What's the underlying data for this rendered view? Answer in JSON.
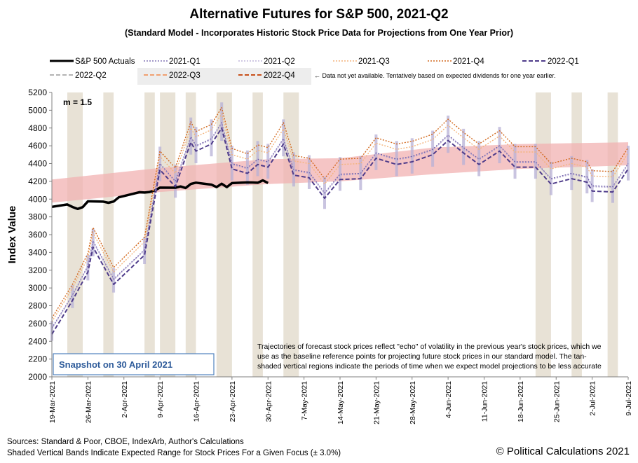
{
  "chart_data": {
    "type": "line",
    "title": "Alternative Futures for S&P 500, 2021-Q2",
    "subtitle": "(Standard Model - Incorporates Historic Stock Price Data for Projections from One Year Prior)",
    "ylabel": "Index Value",
    "ylim": [
      2000,
      5200
    ],
    "yticks": [
      2000,
      2200,
      2400,
      2600,
      2800,
      3000,
      3200,
      3400,
      3600,
      3800,
      4000,
      4200,
      4400,
      4600,
      4800,
      5000,
      5200
    ],
    "xlim": [
      "2021-03-19",
      "2021-07-09"
    ],
    "xticks": [
      "19-Mar-2021",
      "26-Mar-2021",
      "2-Apr-2021",
      "9-Apr-2021",
      "16-Apr-2021",
      "23-Apr-2021",
      "30-Apr-2021",
      "7-May-2021",
      "14-May-2021",
      "21-May-2021",
      "28-May-2021",
      "4-Jun-2021",
      "11-Jun-2021",
      "18-Jun-2021",
      "25-Jun-2021",
      "2-Jul-2021",
      "9-Jul-2021"
    ],
    "m_label": "m = 1.5",
    "snapshot_label": "Snapshot on 30 April 2021",
    "note": [
      "Trajectories of forecast stock prices reflect \"echo\" of volatility in  the previous year's stock prices, which we",
      "use as the baseline reference points for projecting future stock prices in our standard model.  The tan-",
      "shaded vertical regions indicate the periods of time when we expect model projections to be less accurate"
    ],
    "legend_note": "← Data not yet available.  Tentatively based on expected dividends for one year earlier.",
    "colors": {
      "actual": "#000000",
      "q2021_1": "#6b5ba8",
      "q2021_2": "#b5a8d3",
      "q2021_3": "#f3b47c",
      "q2021_4": "#d2691e",
      "q2022_1": "#4e3b8a",
      "q2022_2": "#9a9a9a",
      "q2022_3": "#f0a070",
      "q2022_4": "#c8501a",
      "range_band": "#f2b2b2",
      "tan_band": "#e8e2d6",
      "purple_band": "#b7b0d6",
      "snapshot_box": "#4f81bd"
    },
    "series": [
      {
        "name": "S&P 500 Actuals",
        "points": [
          [
            "2021-03-19",
            3913
          ],
          [
            "2021-03-22",
            3940
          ],
          [
            "2021-03-23",
            3911
          ],
          [
            "2021-03-24",
            3889
          ],
          [
            "2021-03-25",
            3910
          ],
          [
            "2021-03-26",
            3975
          ],
          [
            "2021-03-29",
            3971
          ],
          [
            "2021-03-30",
            3959
          ],
          [
            "2021-03-31",
            3973
          ],
          [
            "2021-04-01",
            4020
          ],
          [
            "2021-04-05",
            4078
          ],
          [
            "2021-04-06",
            4074
          ],
          [
            "2021-04-07",
            4080
          ],
          [
            "2021-04-08",
            4097
          ],
          [
            "2021-04-09",
            4129
          ],
          [
            "2021-04-12",
            4128
          ],
          [
            "2021-04-13",
            4142
          ],
          [
            "2021-04-14",
            4125
          ],
          [
            "2021-04-15",
            4171
          ],
          [
            "2021-04-16",
            4185
          ],
          [
            "2021-04-19",
            4163
          ],
          [
            "2021-04-20",
            4135
          ],
          [
            "2021-04-21",
            4173
          ],
          [
            "2021-04-22",
            4135
          ],
          [
            "2021-04-23",
            4180
          ],
          [
            "2021-04-26",
            4188
          ],
          [
            "2021-04-27",
            4187
          ],
          [
            "2021-04-28",
            4184
          ],
          [
            "2021-04-29",
            4211
          ],
          [
            "2021-04-30",
            4181
          ]
        ]
      },
      {
        "name": "2021-Q1",
        "points": [
          [
            "2021-03-19",
            2550
          ],
          [
            "2021-03-23",
            2920
          ],
          [
            "2021-03-26",
            3250
          ],
          [
            "2021-03-27",
            3530
          ],
          [
            "2021-03-31",
            3100
          ],
          [
            "2021-04-06",
            3430
          ],
          [
            "2021-04-09",
            4400
          ],
          [
            "2021-04-12",
            4200
          ],
          [
            "2021-04-15",
            4700
          ],
          [
            "2021-04-16",
            4600
          ],
          [
            "2021-04-19",
            4680
          ],
          [
            "2021-04-21",
            4860
          ],
          [
            "2021-04-23",
            4400
          ],
          [
            "2021-04-26",
            4350
          ],
          [
            "2021-04-28",
            4450
          ],
          [
            "2021-04-30",
            4420
          ],
          [
            "2021-05-03",
            4680
          ],
          [
            "2021-05-05",
            4330
          ],
          [
            "2021-05-08",
            4300
          ],
          [
            "2021-05-11",
            4070
          ],
          [
            "2021-05-14",
            4280
          ],
          [
            "2021-05-18",
            4290
          ],
          [
            "2021-05-21",
            4520
          ],
          [
            "2021-05-25",
            4450
          ],
          [
            "2021-05-28",
            4480
          ],
          [
            "2021-06-01",
            4560
          ],
          [
            "2021-06-04",
            4720
          ],
          [
            "2021-06-07",
            4580
          ],
          [
            "2021-06-10",
            4450
          ],
          [
            "2021-06-14",
            4600
          ],
          [
            "2021-06-17",
            4420
          ],
          [
            "2021-06-21",
            4420
          ],
          [
            "2021-06-24",
            4230
          ],
          [
            "2021-06-28",
            4290
          ],
          [
            "2021-07-01",
            4250
          ],
          [
            "2021-07-02",
            4150
          ],
          [
            "2021-07-06",
            4140
          ],
          [
            "2021-07-09",
            4400
          ]
        ]
      },
      {
        "name": "2021-Q2",
        "points": [
          [
            "2021-03-19",
            2540
          ],
          [
            "2021-03-23",
            2910
          ],
          [
            "2021-03-26",
            3240
          ],
          [
            "2021-03-27",
            3520
          ],
          [
            "2021-03-31",
            3090
          ],
          [
            "2021-04-06",
            3420
          ],
          [
            "2021-04-09",
            4390
          ],
          [
            "2021-04-12",
            4190
          ],
          [
            "2021-04-15",
            4690
          ],
          [
            "2021-04-16",
            4590
          ],
          [
            "2021-04-19",
            4670
          ],
          [
            "2021-04-21",
            4850
          ],
          [
            "2021-04-23",
            4390
          ],
          [
            "2021-04-26",
            4340
          ],
          [
            "2021-04-28",
            4440
          ],
          [
            "2021-04-30",
            4410
          ],
          [
            "2021-05-03",
            4670
          ],
          [
            "2021-05-05",
            4320
          ],
          [
            "2021-05-08",
            4290
          ],
          [
            "2021-05-11",
            4060
          ],
          [
            "2021-05-14",
            4270
          ],
          [
            "2021-05-18",
            4280
          ],
          [
            "2021-05-21",
            4510
          ],
          [
            "2021-05-25",
            4440
          ],
          [
            "2021-05-28",
            4470
          ],
          [
            "2021-06-01",
            4550
          ],
          [
            "2021-06-04",
            4710
          ],
          [
            "2021-06-07",
            4570
          ],
          [
            "2021-06-10",
            4440
          ],
          [
            "2021-06-14",
            4590
          ],
          [
            "2021-06-17",
            4410
          ],
          [
            "2021-06-21",
            4410
          ],
          [
            "2021-06-24",
            4220
          ],
          [
            "2021-06-28",
            4280
          ],
          [
            "2021-07-01",
            4240
          ],
          [
            "2021-07-02",
            4140
          ],
          [
            "2021-07-06",
            4130
          ],
          [
            "2021-07-09",
            4390
          ]
        ]
      },
      {
        "name": "2021-Q3",
        "points": [
          [
            "2021-03-19",
            2620
          ],
          [
            "2021-03-23",
            3000
          ],
          [
            "2021-03-26",
            3340
          ],
          [
            "2021-03-27",
            3620
          ],
          [
            "2021-03-31",
            3180
          ],
          [
            "2021-04-06",
            3520
          ],
          [
            "2021-04-09",
            4480
          ],
          [
            "2021-04-12",
            4290
          ],
          [
            "2021-04-15",
            4800
          ],
          [
            "2021-04-16",
            4700
          ],
          [
            "2021-04-19",
            4780
          ],
          [
            "2021-04-21",
            4960
          ],
          [
            "2021-04-23",
            4500
          ],
          [
            "2021-04-26",
            4450
          ],
          [
            "2021-04-28",
            4550
          ],
          [
            "2021-04-30",
            4520
          ],
          [
            "2021-05-03",
            4790
          ],
          [
            "2021-05-05",
            4430
          ],
          [
            "2021-05-08",
            4400
          ],
          [
            "2021-05-11",
            4170
          ],
          [
            "2021-05-14",
            4390
          ],
          [
            "2021-05-18",
            4400
          ],
          [
            "2021-05-21",
            4630
          ],
          [
            "2021-05-25",
            4560
          ],
          [
            "2021-05-28",
            4590
          ],
          [
            "2021-06-01",
            4670
          ],
          [
            "2021-06-04",
            4830
          ],
          [
            "2021-06-07",
            4690
          ],
          [
            "2021-06-10",
            4560
          ],
          [
            "2021-06-14",
            4710
          ],
          [
            "2021-06-17",
            4530
          ],
          [
            "2021-06-21",
            4530
          ],
          [
            "2021-06-24",
            4340
          ],
          [
            "2021-06-28",
            4400
          ],
          [
            "2021-07-01",
            4360
          ],
          [
            "2021-07-02",
            4260
          ],
          [
            "2021-07-06",
            4250
          ],
          [
            "2021-07-09",
            4520
          ]
        ]
      },
      {
        "name": "2021-Q4",
        "points": [
          [
            "2021-03-19",
            2660
          ],
          [
            "2021-03-23",
            3040
          ],
          [
            "2021-03-26",
            3390
          ],
          [
            "2021-03-27",
            3680
          ],
          [
            "2021-03-31",
            3230
          ],
          [
            "2021-04-06",
            3570
          ],
          [
            "2021-04-09",
            4540
          ],
          [
            "2021-04-12",
            4350
          ],
          [
            "2021-04-15",
            4870
          ],
          [
            "2021-04-16",
            4760
          ],
          [
            "2021-04-19",
            4840
          ],
          [
            "2021-04-21",
            5030
          ],
          [
            "2021-04-23",
            4570
          ],
          [
            "2021-04-26",
            4510
          ],
          [
            "2021-04-28",
            4610
          ],
          [
            "2021-04-30",
            4580
          ],
          [
            "2021-05-03",
            4860
          ],
          [
            "2021-05-05",
            4490
          ],
          [
            "2021-05-08",
            4460
          ],
          [
            "2021-05-11",
            4230
          ],
          [
            "2021-05-14",
            4450
          ],
          [
            "2021-05-18",
            4460
          ],
          [
            "2021-05-21",
            4690
          ],
          [
            "2021-05-25",
            4620
          ],
          [
            "2021-05-28",
            4650
          ],
          [
            "2021-06-01",
            4730
          ],
          [
            "2021-06-04",
            4900
          ],
          [
            "2021-06-07",
            4750
          ],
          [
            "2021-06-10",
            4620
          ],
          [
            "2021-06-14",
            4770
          ],
          [
            "2021-06-17",
            4590
          ],
          [
            "2021-06-21",
            4590
          ],
          [
            "2021-06-24",
            4400
          ],
          [
            "2021-06-28",
            4460
          ],
          [
            "2021-07-01",
            4420
          ],
          [
            "2021-07-02",
            4320
          ],
          [
            "2021-07-06",
            4310
          ],
          [
            "2021-07-09",
            4580
          ]
        ]
      },
      {
        "name": "2022-Q1",
        "points": [
          [
            "2021-03-19",
            2480
          ],
          [
            "2021-03-23",
            2860
          ],
          [
            "2021-03-26",
            3180
          ],
          [
            "2021-03-27",
            3460
          ],
          [
            "2021-03-31",
            3040
          ],
          [
            "2021-04-06",
            3370
          ],
          [
            "2021-04-09",
            4330
          ],
          [
            "2021-04-12",
            4140
          ],
          [
            "2021-04-15",
            4640
          ],
          [
            "2021-04-16",
            4540
          ],
          [
            "2021-04-19",
            4620
          ],
          [
            "2021-04-21",
            4800
          ],
          [
            "2021-04-23",
            4340
          ],
          [
            "2021-04-26",
            4290
          ],
          [
            "2021-04-28",
            4390
          ],
          [
            "2021-04-30",
            4360
          ],
          [
            "2021-05-03",
            4620
          ],
          [
            "2021-05-05",
            4270
          ],
          [
            "2021-05-08",
            4240
          ],
          [
            "2021-05-11",
            4010
          ],
          [
            "2021-05-14",
            4220
          ],
          [
            "2021-05-18",
            4230
          ],
          [
            "2021-05-21",
            4460
          ],
          [
            "2021-05-25",
            4390
          ],
          [
            "2021-05-28",
            4420
          ],
          [
            "2021-06-01",
            4500
          ],
          [
            "2021-06-04",
            4660
          ],
          [
            "2021-06-07",
            4520
          ],
          [
            "2021-06-10",
            4390
          ],
          [
            "2021-06-14",
            4540
          ],
          [
            "2021-06-17",
            4360
          ],
          [
            "2021-06-21",
            4360
          ],
          [
            "2021-06-24",
            4170
          ],
          [
            "2021-06-28",
            4230
          ],
          [
            "2021-07-01",
            4190
          ],
          [
            "2021-07-02",
            4090
          ],
          [
            "2021-07-06",
            4080
          ],
          [
            "2021-07-09",
            4340
          ]
        ]
      },
      {
        "name": "2022-Q2",
        "points": []
      },
      {
        "name": "2022-Q3",
        "points": []
      },
      {
        "name": "2022-Q4",
        "points": []
      }
    ],
    "range_band": {
      "points": [
        [
          "2021-03-19",
          3960,
          4220
        ],
        [
          "2021-04-09",
          4080,
          4350
        ],
        [
          "2021-04-30",
          4170,
          4450
        ],
        [
          "2021-05-14",
          4200,
          4460
        ],
        [
          "2021-06-01",
          4280,
          4580
        ],
        [
          "2021-06-18",
          4340,
          4620
        ],
        [
          "2021-07-09",
          4380,
          4640
        ]
      ]
    },
    "tan_bands": [
      [
        "2021-03-22",
        "2021-03-25"
      ],
      [
        "2021-03-29",
        "2021-03-31"
      ],
      [
        "2021-04-06",
        "2021-04-08"
      ],
      [
        "2021-04-09",
        "2021-04-12"
      ],
      [
        "2021-04-14",
        "2021-04-16"
      ],
      [
        "2021-04-20",
        "2021-04-23"
      ],
      [
        "2021-04-27",
        "2021-04-29"
      ],
      [
        "2021-05-03",
        "2021-05-06"
      ],
      [
        "2021-06-21",
        "2021-06-24"
      ],
      [
        "2021-06-28",
        "2021-06-30"
      ],
      [
        "2021-07-05",
        "2021-07-07"
      ]
    ]
  }
}
